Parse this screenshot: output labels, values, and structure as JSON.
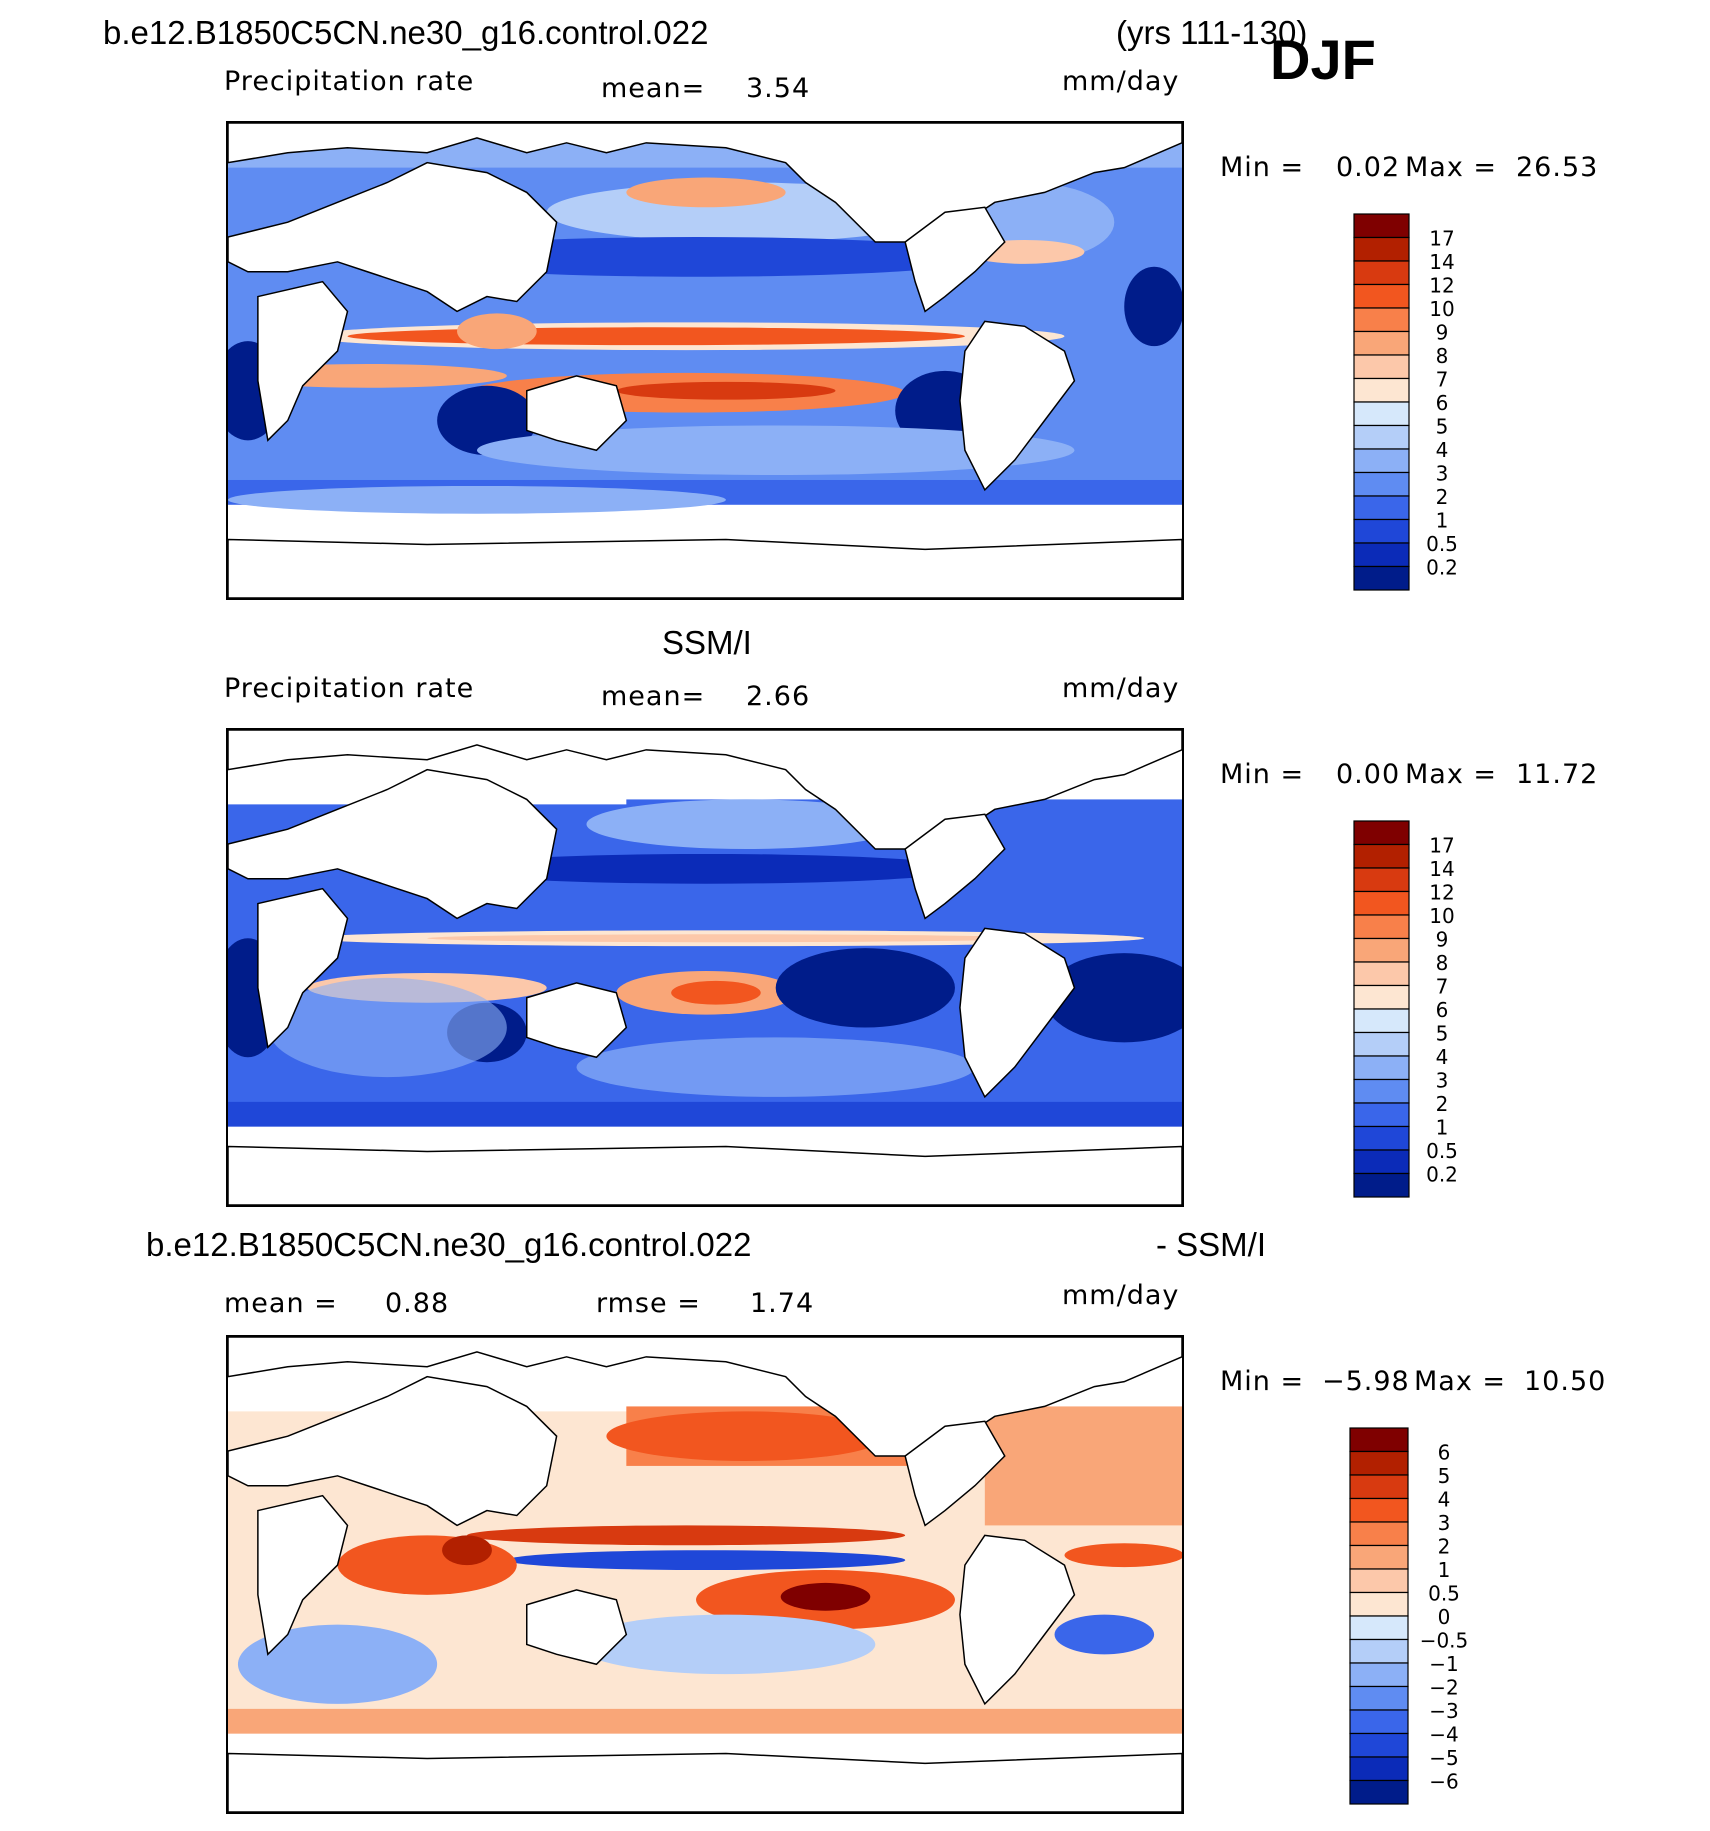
{
  "header": {
    "case_name": "b.e12.B1850C5CN.ne30_g16.control.022",
    "years": "(yrs 111-130)",
    "season": "DJF"
  },
  "panels": [
    {
      "title_left": "Precipitation rate",
      "mean_label": "mean=",
      "mean_value": "3.54",
      "units": "mm/day",
      "min_label": "Min =",
      "min_value": "0.02",
      "max_label": "Max =",
      "max_value": "26.53",
      "colorbar_levels": [
        "17",
        "14",
        "12",
        "10",
        "9",
        "8",
        "7",
        "6",
        "5",
        "4",
        "3",
        "2",
        "1",
        "0.5",
        "0.2"
      ]
    },
    {
      "dataset_title": "SSM/I",
      "title_left": "Precipitation rate",
      "mean_label": "mean=",
      "mean_value": "2.66",
      "units": "mm/day",
      "min_label": "Min =",
      "min_value": "0.00",
      "max_label": "Max =",
      "max_value": "11.72",
      "colorbar_levels": [
        "17",
        "14",
        "12",
        "10",
        "9",
        "8",
        "7",
        "6",
        "5",
        "4",
        "3",
        "2",
        "1",
        "0.5",
        "0.2"
      ]
    },
    {
      "diff_title_left": "b.e12.B1850C5CN.ne30_g16.control.022",
      "diff_title_right": "- SSM/I",
      "mean_label": "mean =",
      "mean_value": "0.88",
      "rmse_label": "rmse =",
      "rmse_value": "1.74",
      "units": "mm/day",
      "min_label": "Min =",
      "min_value": "−5.98",
      "max_label": "Max =",
      "max_value": "10.50",
      "colorbar_levels": [
        "6",
        "5",
        "4",
        "3",
        "2",
        "1",
        "0.5",
        "0",
        "−0.5",
        "−1",
        "−2",
        "−3",
        "−4",
        "−5",
        "−6"
      ]
    }
  ],
  "colors": {
    "precip_scale": [
      "#7f0000",
      "#b22000",
      "#d83a10",
      "#f2561f",
      "#f8804a",
      "#f9a678",
      "#fcc8aa",
      "#fde6d2",
      "#d6e8fb",
      "#b4cef8",
      "#8cb0f6",
      "#5f8cf2",
      "#3a66ea",
      "#1f47d8",
      "#0b2bb8",
      "#001c8a"
    ],
    "diff_scale": [
      "#7f0000",
      "#b22000",
      "#d83a10",
      "#f2561f",
      "#f8804a",
      "#f9a678",
      "#fcc8aa",
      "#fde6d2",
      "#d6e8fb",
      "#b4cef8",
      "#8cb0f6",
      "#5f8cf2",
      "#3a66ea",
      "#1f47d8",
      "#0b2bb8",
      "#001c8a"
    ]
  }
}
